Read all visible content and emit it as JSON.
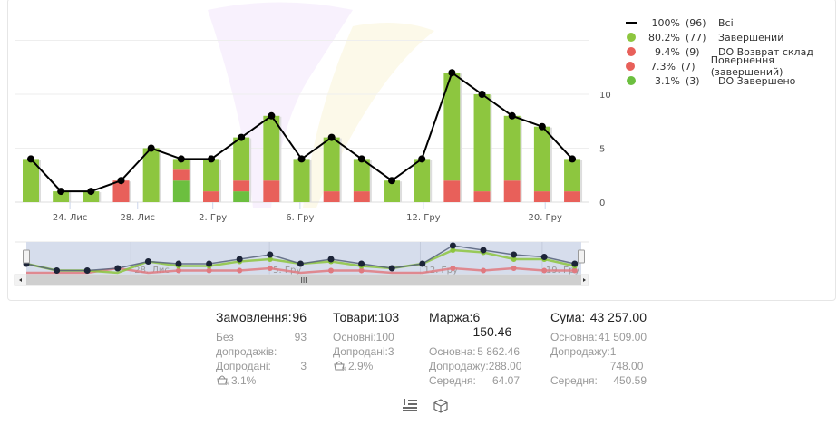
{
  "legend": [
    {
      "pct": "100%",
      "count": "(96)",
      "label": "Всі",
      "color": "#000000",
      "symbol": "line"
    },
    {
      "pct": "80.2%",
      "count": "(77)",
      "label": "Завершений",
      "color": "#8dc63f",
      "symbol": "dot"
    },
    {
      "pct": "9.4%",
      "count": "(9)",
      "label": "DO Возврат склад",
      "color": "#e8605a",
      "symbol": "dot"
    },
    {
      "pct": "7.3%",
      "count": "(7)",
      "label": "Повернення (завершений)",
      "color": "#e8605a",
      "symbol": "dot"
    },
    {
      "pct": "3.1%",
      "count": "(3)",
      "label": "DO Завершено",
      "color": "#6cbf3f",
      "symbol": "dot"
    }
  ],
  "chart_data": {
    "type": "bar",
    "stacked": true,
    "ylim": [
      0,
      15
    ],
    "yticks": [
      "0",
      "5",
      "10"
    ],
    "grid": true,
    "xticks": [
      {
        "label": "24. Лис",
        "at": 1.3
      },
      {
        "label": "28. Лис",
        "at": 3.55
      },
      {
        "label": "2. Гру",
        "at": 6.05
      },
      {
        "label": "6. Гру",
        "at": 8.95
      },
      {
        "label": "12. Гру",
        "at": 13.05
      },
      {
        "label": "20. Гру",
        "at": 17.1
      }
    ],
    "series": [
      {
        "name": "DO Завершено",
        "color": "#6cbf3f",
        "values": [
          0,
          0,
          0,
          0,
          0,
          2,
          0,
          1,
          0,
          0,
          0,
          0,
          0,
          0,
          0,
          0,
          0,
          0,
          0
        ]
      },
      {
        "name": "DO Возврат склад",
        "color": "#e8605a",
        "values": [
          0,
          0,
          0,
          2,
          0,
          1,
          1,
          1,
          2,
          0,
          1,
          1,
          0,
          0,
          0,
          0,
          0,
          0,
          0
        ]
      },
      {
        "name": "Повернення (завершений)",
        "color": "#e8605a",
        "values": [
          0,
          0,
          0,
          0,
          0,
          0,
          0,
          0,
          0,
          0,
          0,
          0,
          0,
          0,
          2,
          1,
          2,
          1,
          1
        ]
      },
      {
        "name": "Завершений",
        "color": "#8dc63f",
        "values": [
          4,
          1,
          1,
          0,
          5,
          1,
          3,
          4,
          6,
          4,
          5,
          3,
          2,
          4,
          10,
          9,
          6,
          6,
          3
        ]
      }
    ],
    "total": {
      "name": "Всі",
      "color": "#000000",
      "values": [
        4,
        1,
        1,
        2,
        5,
        4,
        4,
        6,
        8,
        4,
        6,
        4,
        2,
        4,
        12,
        10,
        8,
        7,
        4
      ]
    },
    "navigator": {
      "xticks": [
        {
          "label": "28. Лис",
          "at": 3.55
        },
        {
          "label": "5. Гру",
          "at": 8.1
        },
        {
          "label": "12. Гру",
          "at": 13.05
        },
        {
          "label": "19. Гру",
          "at": 17.05
        }
      ],
      "scroll_label": "III"
    }
  },
  "stats": [
    {
      "title": "Замовлення:",
      "value": "96",
      "rows": [
        [
          "Без допродажів:",
          "93"
        ],
        [
          "Допродані:",
          "3"
        ]
      ],
      "extra": "3.1%"
    },
    {
      "title": "Товари:",
      "value": "103",
      "rows": [
        [
          "Основні:",
          "100"
        ],
        [
          "Допродані:",
          "3"
        ]
      ],
      "extra": "2.9%"
    },
    {
      "title": "Маржа:",
      "value": "6 150.46",
      "rows": [
        [
          "Основна:",
          "5 862.46"
        ],
        [
          "Допродажу:",
          "288.00"
        ],
        [
          "Середня:",
          "64.07"
        ]
      ]
    },
    {
      "title": "Сума:",
      "value": "43 257.00",
      "rows": [
        [
          "Основна:",
          "41 509.00"
        ],
        [
          "Допродажу:",
          "1 748.00"
        ],
        [
          "Середня:",
          "450.59"
        ]
      ]
    }
  ],
  "icons": {
    "list": "list-sort-icon",
    "box": "box-icon",
    "basket": "basket-percent-icon"
  }
}
